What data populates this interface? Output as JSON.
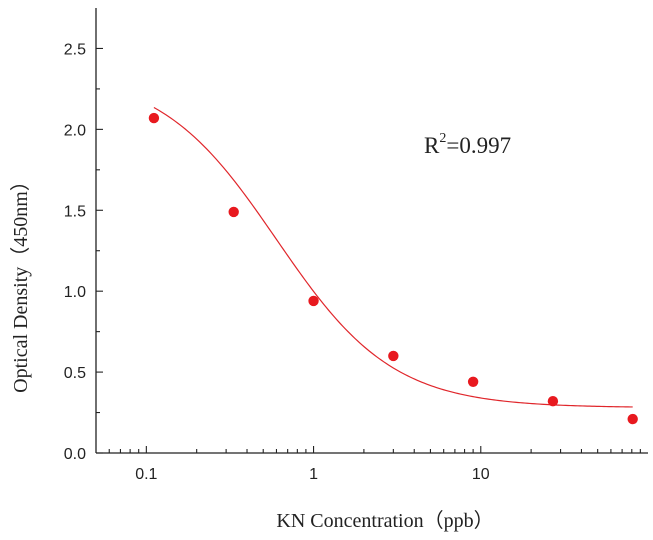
{
  "chart_data": {
    "type": "scatter",
    "title": "",
    "xlabel": "KN Concentration（ppb）",
    "ylabel": "Optical Density（450nm）",
    "xscale": "log",
    "xlim": [
      0.05,
      100
    ],
    "ylim": [
      0,
      2.75
    ],
    "xticks": [
      0.1,
      1,
      10
    ],
    "xtick_labels": [
      "0.1",
      "1",
      "10"
    ],
    "yticks": [
      0,
      0.5,
      1,
      1.5,
      2,
      2.5
    ],
    "ytick_labels": [
      "0.0",
      "0.5",
      "1.0",
      "1.5",
      "2.0",
      "2.5"
    ],
    "grid": false,
    "legend": "none",
    "point_color": "#e8191f",
    "line_color": "#e0262b",
    "annotation": {
      "base": "R",
      "sup": "2",
      "rest": "=0.997"
    },
    "series": [
      {
        "points": [
          {
            "x": 0.111,
            "y": 2.07
          },
          {
            "x": 0.333,
            "y": 1.49
          },
          {
            "x": 1.0,
            "y": 0.94
          },
          {
            "x": 3.0,
            "y": 0.6
          },
          {
            "x": 9.0,
            "y": 0.44
          },
          {
            "x": 27.0,
            "y": 0.32
          },
          {
            "x": 81.0,
            "y": 0.21
          }
        ]
      }
    ],
    "fit_curve": {
      "type": "4PL",
      "top": 2.36,
      "bottom": 0.28,
      "ec50": 0.6,
      "hill": 1.25,
      "x_range": [
        0.111,
        81.0
      ]
    }
  }
}
